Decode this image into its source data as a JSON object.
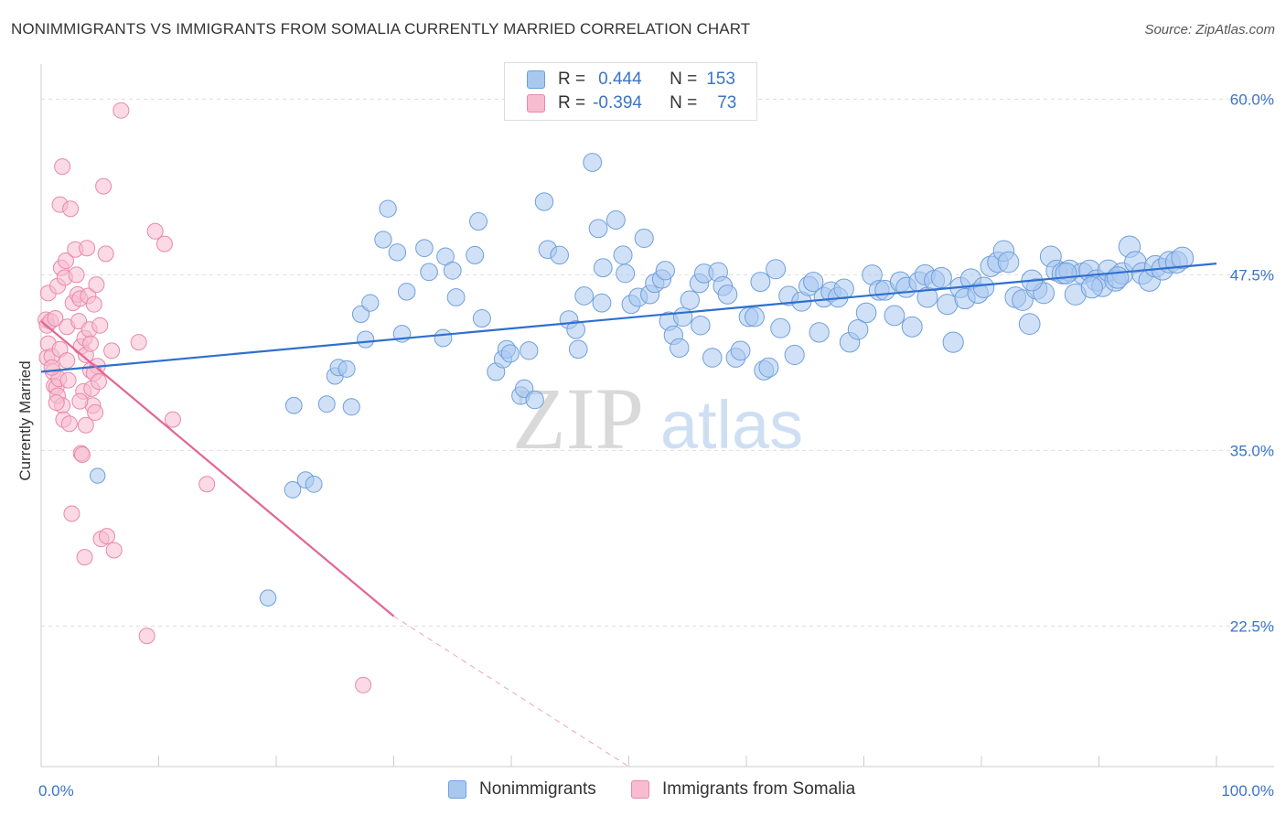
{
  "title": "NONIMMIGRANTS VS IMMIGRANTS FROM SOMALIA CURRENTLY MARRIED CORRELATION CHART",
  "source": "Source: ZipAtlas.com",
  "watermark": {
    "zip": "ZIP",
    "atlas": "atlas"
  },
  "legend": {
    "rows": [
      {
        "r_label": "R =",
        "r_value": "0.444",
        "n_label": "N =",
        "n_value": "153",
        "color": "#a9c8f0",
        "border": "#6f9fdc"
      },
      {
        "r_label": "R =",
        "r_value": "-0.394",
        "n_label": "N =",
        "n_value": "73",
        "color": "#f7bcd0",
        "border": "#e889a8"
      }
    ]
  },
  "chart_data": {
    "type": "scatter",
    "title": "NONIMMIGRANTS VS IMMIGRANTS FROM SOMALIA CURRENTLY MARRIED CORRELATION CHART",
    "xlabel": "",
    "ylabel": "Currently Married",
    "xlim": [
      0,
      100
    ],
    "ylim": [
      12.5,
      62.5
    ],
    "x_tick_labels": [
      "0.0%",
      "100.0%"
    ],
    "y_ticks": [
      22.5,
      35.0,
      47.5,
      60.0
    ],
    "y_tick_labels": [
      "22.5%",
      "35.0%",
      "47.5%",
      "60.0%"
    ],
    "grid": true,
    "legend_position": "top-center",
    "series": [
      {
        "name": "Nonimmigrants",
        "color": "#a9c8f0",
        "stroke": "#6f9fdc",
        "trend": {
          "x": [
            0,
            100
          ],
          "y": [
            40.6,
            48.3
          ],
          "color": "#2f6fcf"
        },
        "points": [
          [
            4.8,
            33.2
          ],
          [
            19.3,
            24.5
          ],
          [
            21.4,
            32.2
          ],
          [
            22.5,
            32.9
          ],
          [
            23.2,
            32.6
          ],
          [
            21.5,
            38.2
          ],
          [
            24.3,
            38.3
          ],
          [
            26.4,
            38.1
          ],
          [
            25.0,
            40.3
          ],
          [
            25.3,
            40.9
          ],
          [
            26.0,
            40.8
          ],
          [
            27.2,
            44.7
          ],
          [
            28.0,
            45.5
          ],
          [
            27.6,
            42.9
          ],
          [
            29.1,
            50.0
          ],
          [
            29.5,
            52.2
          ],
          [
            30.3,
            49.1
          ],
          [
            31.1,
            46.3
          ],
          [
            30.7,
            43.3
          ],
          [
            33.0,
            47.7
          ],
          [
            32.6,
            49.4
          ],
          [
            34.4,
            48.8
          ],
          [
            35.0,
            47.8
          ],
          [
            34.2,
            43.0
          ],
          [
            35.3,
            45.9
          ],
          [
            36.9,
            48.9
          ],
          [
            37.2,
            51.3
          ],
          [
            37.5,
            44.4
          ],
          [
            38.7,
            40.6
          ],
          [
            39.3,
            41.5
          ],
          [
            39.6,
            42.2
          ],
          [
            39.9,
            41.9
          ],
          [
            40.8,
            38.9
          ],
          [
            41.1,
            39.4
          ],
          [
            42.0,
            38.6
          ],
          [
            41.5,
            42.1
          ],
          [
            42.8,
            52.7
          ],
          [
            43.1,
            49.3
          ],
          [
            44.1,
            48.9
          ],
          [
            44.9,
            44.3
          ],
          [
            45.5,
            43.6
          ],
          [
            45.7,
            42.2
          ],
          [
            46.2,
            46.0
          ],
          [
            46.9,
            55.5
          ],
          [
            47.4,
            50.8
          ],
          [
            47.8,
            48.0
          ],
          [
            47.7,
            45.5
          ],
          [
            48.9,
            51.4
          ],
          [
            49.5,
            48.9
          ],
          [
            49.7,
            47.6
          ],
          [
            50.2,
            45.4
          ],
          [
            50.8,
            45.9
          ],
          [
            51.3,
            50.1
          ],
          [
            51.8,
            46.1
          ],
          [
            52.2,
            46.9
          ],
          [
            52.8,
            47.2
          ],
          [
            53.1,
            47.8
          ],
          [
            53.4,
            44.2
          ],
          [
            53.8,
            43.2
          ],
          [
            54.3,
            42.3
          ],
          [
            54.6,
            44.5
          ],
          [
            55.2,
            45.7
          ],
          [
            56.0,
            46.9
          ],
          [
            56.4,
            47.6
          ],
          [
            56.1,
            43.9
          ],
          [
            57.1,
            41.6
          ],
          [
            57.6,
            47.7
          ],
          [
            58.0,
            46.7
          ],
          [
            58.4,
            46.1
          ],
          [
            59.1,
            41.6
          ],
          [
            59.5,
            42.1
          ],
          [
            60.2,
            44.5
          ],
          [
            60.7,
            44.5
          ],
          [
            61.2,
            47.0
          ],
          [
            61.5,
            40.7
          ],
          [
            61.9,
            40.9
          ],
          [
            62.5,
            47.9
          ],
          [
            62.9,
            43.7
          ],
          [
            63.6,
            46.0
          ],
          [
            64.1,
            41.8
          ],
          [
            64.7,
            45.6
          ],
          [
            65.3,
            46.7
          ],
          [
            65.7,
            47.0
          ],
          [
            66.2,
            43.4
          ],
          [
            66.6,
            45.9
          ],
          [
            67.2,
            46.3
          ],
          [
            67.8,
            45.9
          ],
          [
            68.3,
            46.5
          ],
          [
            68.8,
            42.7
          ],
          [
            69.5,
            43.6
          ],
          [
            70.2,
            44.8
          ],
          [
            70.7,
            47.5
          ],
          [
            71.3,
            46.4
          ],
          [
            71.8,
            46.4
          ],
          [
            72.6,
            44.6
          ],
          [
            73.1,
            47.0
          ],
          [
            73.6,
            46.6
          ],
          [
            74.1,
            43.8
          ],
          [
            74.7,
            47.0
          ],
          [
            75.2,
            47.5
          ],
          [
            75.4,
            45.9
          ],
          [
            76.0,
            47.1
          ],
          [
            76.6,
            47.3
          ],
          [
            77.1,
            45.4
          ],
          [
            77.6,
            42.7
          ],
          [
            78.2,
            46.6
          ],
          [
            78.6,
            45.8
          ],
          [
            79.1,
            47.2
          ],
          [
            79.7,
            46.2
          ],
          [
            80.2,
            46.6
          ],
          [
            80.8,
            48.1
          ],
          [
            81.4,
            48.4
          ],
          [
            81.9,
            49.2
          ],
          [
            82.3,
            48.4
          ],
          [
            82.9,
            45.9
          ],
          [
            83.5,
            45.7
          ],
          [
            84.1,
            44.0
          ],
          [
            84.7,
            46.5
          ],
          [
            85.3,
            46.2
          ],
          [
            85.9,
            48.8
          ],
          [
            86.4,
            47.8
          ],
          [
            86.9,
            47.6
          ],
          [
            87.5,
            47.8
          ],
          [
            88.0,
            46.1
          ],
          [
            88.6,
            47.6
          ],
          [
            89.2,
            47.8
          ],
          [
            89.8,
            47.1
          ],
          [
            90.3,
            46.7
          ],
          [
            90.8,
            47.8
          ],
          [
            91.4,
            47.1
          ],
          [
            92.0,
            47.6
          ],
          [
            92.6,
            49.5
          ],
          [
            93.1,
            48.4
          ],
          [
            93.7,
            47.6
          ],
          [
            94.3,
            47.1
          ],
          [
            94.8,
            48.1
          ],
          [
            95.4,
            47.9
          ],
          [
            96.0,
            48.4
          ],
          [
            96.6,
            48.4
          ],
          [
            97.1,
            48.7
          ],
          [
            91.6,
            47.3
          ],
          [
            89.4,
            46.6
          ],
          [
            87.2,
            47.6
          ],
          [
            84.3,
            47.1
          ]
        ]
      },
      {
        "name": "Immigrants from Somalia",
        "color": "#f7bcd0",
        "stroke": "#e889a8",
        "trend": {
          "x": [
            0,
            30
          ],
          "y": [
            44.2,
            23.2
          ],
          "dashed_to": [
            50,
            9.3
          ],
          "color": "#e26694"
        },
        "points": [
          [
            0.4,
            44.3
          ],
          [
            0.5,
            43.9
          ],
          [
            0.6,
            42.6
          ],
          [
            0.5,
            41.6
          ],
          [
            0.6,
            46.2
          ],
          [
            0.8,
            44.2
          ],
          [
            0.9,
            41.7
          ],
          [
            1.0,
            40.6
          ],
          [
            1.1,
            39.6
          ],
          [
            1.2,
            44.4
          ],
          [
            1.3,
            39.5
          ],
          [
            1.4,
            38.9
          ],
          [
            1.5,
            40.1
          ],
          [
            1.6,
            42.2
          ],
          [
            1.4,
            46.7
          ],
          [
            1.6,
            52.5
          ],
          [
            1.8,
            55.2
          ],
          [
            1.7,
            48.0
          ],
          [
            1.8,
            38.2
          ],
          [
            1.9,
            37.2
          ],
          [
            2.0,
            47.3
          ],
          [
            2.1,
            48.5
          ],
          [
            2.2,
            43.8
          ],
          [
            2.3,
            40.0
          ],
          [
            2.4,
            36.9
          ],
          [
            2.5,
            52.2
          ],
          [
            2.6,
            30.5
          ],
          [
            2.7,
            45.5
          ],
          [
            2.9,
            49.3
          ],
          [
            3.0,
            47.5
          ],
          [
            3.1,
            46.1
          ],
          [
            3.2,
            44.2
          ],
          [
            3.3,
            45.8
          ],
          [
            3.4,
            42.4
          ],
          [
            3.4,
            34.8
          ],
          [
            3.5,
            34.7
          ],
          [
            3.7,
            43.0
          ],
          [
            3.6,
            39.2
          ],
          [
            3.8,
            41.8
          ],
          [
            3.9,
            49.4
          ],
          [
            3.8,
            36.8
          ],
          [
            3.7,
            27.4
          ],
          [
            4.0,
            46.0
          ],
          [
            4.1,
            43.6
          ],
          [
            4.2,
            40.7
          ],
          [
            4.3,
            39.4
          ],
          [
            4.4,
            38.2
          ],
          [
            4.5,
            45.4
          ],
          [
            4.6,
            37.7
          ],
          [
            4.7,
            46.8
          ],
          [
            4.8,
            41.0
          ],
          [
            4.5,
            40.5
          ],
          [
            4.9,
            39.9
          ],
          [
            5.0,
            43.9
          ],
          [
            5.1,
            28.7
          ],
          [
            5.3,
            53.8
          ],
          [
            5.5,
            49.0
          ],
          [
            5.6,
            28.9
          ],
          [
            6.0,
            42.1
          ],
          [
            6.2,
            27.9
          ],
          [
            6.8,
            59.2
          ],
          [
            8.3,
            42.7
          ],
          [
            9.0,
            21.8
          ],
          [
            9.7,
            50.6
          ],
          [
            10.5,
            49.7
          ],
          [
            11.2,
            37.2
          ],
          [
            14.1,
            32.6
          ],
          [
            27.4,
            18.3
          ],
          [
            3.3,
            38.5
          ],
          [
            2.2,
            41.4
          ],
          [
            1.3,
            38.4
          ],
          [
            0.9,
            40.9
          ],
          [
            4.2,
            42.6
          ]
        ]
      }
    ]
  }
}
